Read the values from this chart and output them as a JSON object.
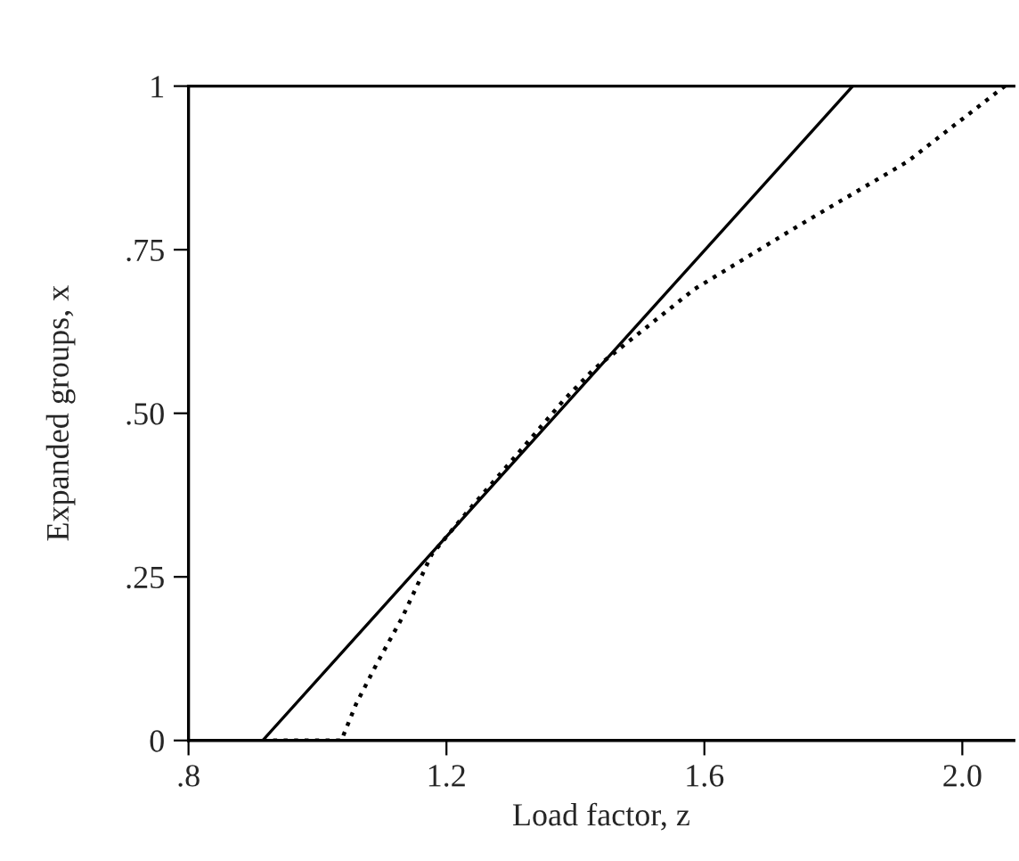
{
  "chart_data": {
    "type": "line",
    "xlabel": "Load factor, z",
    "ylabel": "Expanded groups, x",
    "xlim": [
      0.8,
      2.08
    ],
    "ylim": [
      0,
      1
    ],
    "xticks": [
      {
        "value": 0.8,
        "label": ".8"
      },
      1.2,
      1.6,
      {
        "value": 2.0,
        "label": "2.0"
      }
    ],
    "yticks": [
      0,
      {
        "value": 0.25,
        "label": ".25"
      },
      {
        "value": 0.5,
        "label": ".50"
      },
      {
        "value": 0.75,
        "label": ".75"
      },
      1
    ],
    "grid": false,
    "legend": false,
    "series": [
      {
        "color": "#000000",
        "line_style": "solid",
        "x": [
          0.915,
          1.83
        ],
        "values": [
          0,
          1
        ]
      },
      {
        "color": "#000000",
        "line_style": "dotted",
        "x": [
          0.915,
          1.037,
          1.06,
          1.094,
          1.131,
          1.177,
          1.231,
          1.298,
          1.381,
          1.428,
          1.585,
          1.75,
          1.914,
          2.066
        ],
        "values": [
          0,
          0,
          0.056,
          0.121,
          0.187,
          0.284,
          0.348,
          0.424,
          0.519,
          0.567,
          0.69,
          0.789,
          0.884,
          1
        ]
      }
    ]
  }
}
